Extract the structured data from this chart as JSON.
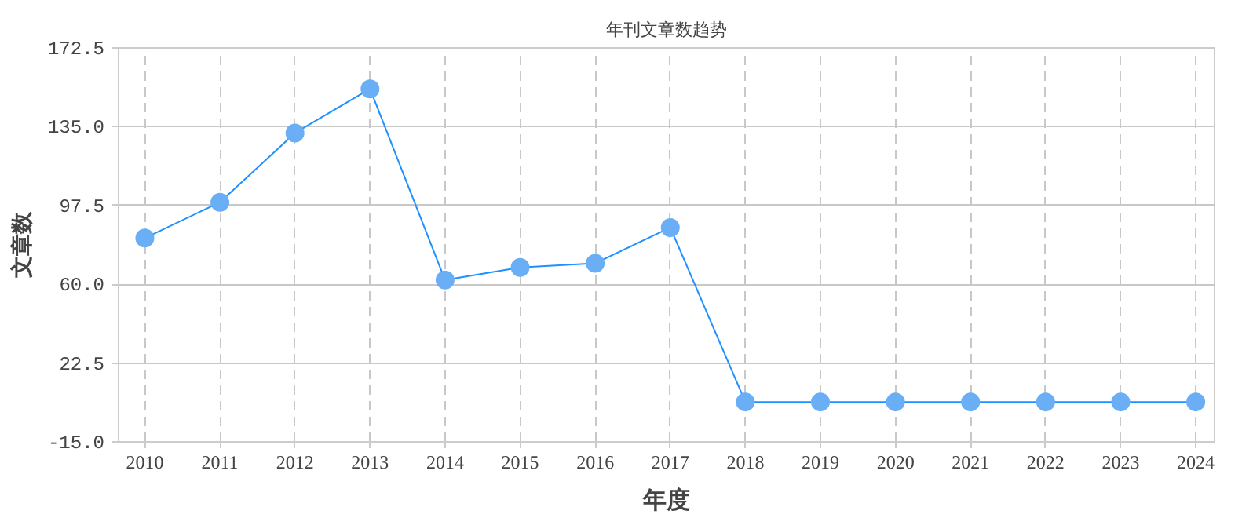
{
  "chart_data": {
    "type": "line",
    "title": "年刊文章数趋势",
    "xlabel": "年度",
    "ylabel": "文章数",
    "categories": [
      "2010",
      "2011",
      "2012",
      "2013",
      "2014",
      "2015",
      "2016",
      "2017",
      "2018",
      "2019",
      "2020",
      "2021",
      "2022",
      "2023",
      "2024"
    ],
    "series": [
      {
        "color": "#1e90ff",
        "values": [
          82,
          99,
          132,
          153,
          62,
          68,
          70,
          87,
          4,
          4,
          4,
          4,
          4,
          4,
          4
        ]
      }
    ],
    "ylim": [
      -15,
      172.5
    ],
    "yticks": [
      {
        "value": -15,
        "label": "-15.0"
      },
      {
        "value": 22.5,
        "label": "22.5"
      },
      {
        "value": 60,
        "label": "60.0"
      },
      {
        "value": 97.5,
        "label": "97.5"
      },
      {
        "value": 135,
        "label": "135.0"
      },
      {
        "value": 172.5,
        "label": "172.5"
      }
    ],
    "grid": true,
    "marker": "circle",
    "line_style": "solid"
  }
}
